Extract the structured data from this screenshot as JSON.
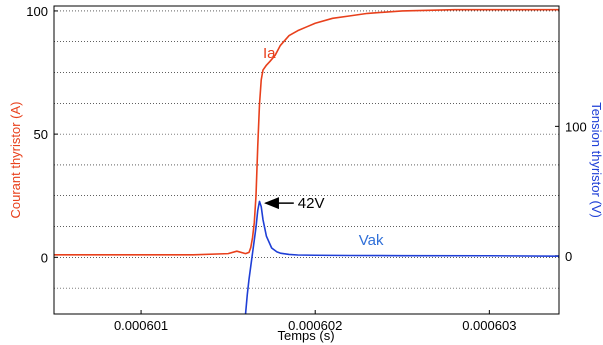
{
  "chart_data": {
    "type": "line",
    "xlabel": "Temps (s)",
    "ylabel_left": "Courant thyristor (A)",
    "ylabel_right": "Tension thyristor (V)",
    "xlim": [
      0.0006005,
      0.0006034
    ],
    "ylim_left": [
      -23,
      102
    ],
    "ylim_right": [
      -45,
      193
    ],
    "x_ticks": [
      0.000601,
      0.000602,
      0.000603
    ],
    "x_tick_labels": [
      "0.000601",
      "0.000602",
      "0.000603"
    ],
    "y_left_ticks": [
      0,
      50,
      100
    ],
    "y_left_tick_labels": [
      "0",
      "50",
      "100"
    ],
    "y_right_ticks": [
      0,
      100
    ],
    "y_right_tick_labels": [
      "0",
      "100"
    ],
    "grid": true,
    "colors": {
      "ia": "#e8401c",
      "vak": "#1f3fd6",
      "vak_label": "#2f6fd8",
      "annotation": "#000000"
    },
    "series": [
      {
        "name": "Ia",
        "axis": "left",
        "color": "#e8401c",
        "x": [
          0.0006005,
          0.000601,
          0.0006013,
          0.0006015,
          0.00060155,
          0.0006016,
          0.00060162,
          0.00060163,
          0.00060164,
          0.00060165,
          0.00060166,
          0.00060167,
          0.00060168,
          0.00060169,
          0.0006017,
          0.00060172,
          0.00060174,
          0.00060177,
          0.0006018,
          0.00060185,
          0.0006019,
          0.00060195,
          0.000602,
          0.0006021,
          0.0006022,
          0.0006023,
          0.0006025,
          0.0006028,
          0.0006031,
          0.0006034
        ],
        "y": [
          1,
          1,
          1,
          1.5,
          2.5,
          1.5,
          2,
          4,
          8,
          14,
          25,
          45,
          62,
          72,
          76,
          78,
          79.5,
          82,
          86,
          90,
          92,
          93.5,
          95,
          97,
          98,
          99,
          100,
          100.5,
          100.5,
          100.5
        ]
      },
      {
        "name": "Vak",
        "axis": "right",
        "color": "#1f3fd6",
        "x": [
          0.0006016,
          0.00060161,
          0.00060162,
          0.00060163,
          0.00060164,
          0.00060165,
          0.00060166,
          0.00060167,
          0.00060168,
          0.00060169,
          0.0006017,
          0.00060172,
          0.00060175,
          0.00060178,
          0.0006018,
          0.00060185,
          0.0006019,
          0.000602,
          0.0006022,
          0.0006025,
          0.000603,
          0.0006034
        ],
        "y": [
          -45,
          -30,
          -18,
          -8,
          2,
          12,
          22,
          35,
          42,
          38,
          28,
          15,
          6,
          3,
          2,
          1,
          0.6,
          0.4,
          0.2,
          0.1,
          0,
          -0.3
        ]
      }
    ],
    "annotations": [
      {
        "text": "Ia",
        "color": "#e8401c",
        "x": 0.0006017,
        "y_left": 83
      },
      {
        "text": "Vak",
        "color": "#2f6fd8",
        "x": 0.00060225,
        "y_left": 7
      },
      {
        "text": "42V",
        "color": "#000000",
        "x": 0.0006019,
        "y_left": 22,
        "arrow_to_x": 0.00060168,
        "arrow_to_y_left": 22
      }
    ]
  }
}
